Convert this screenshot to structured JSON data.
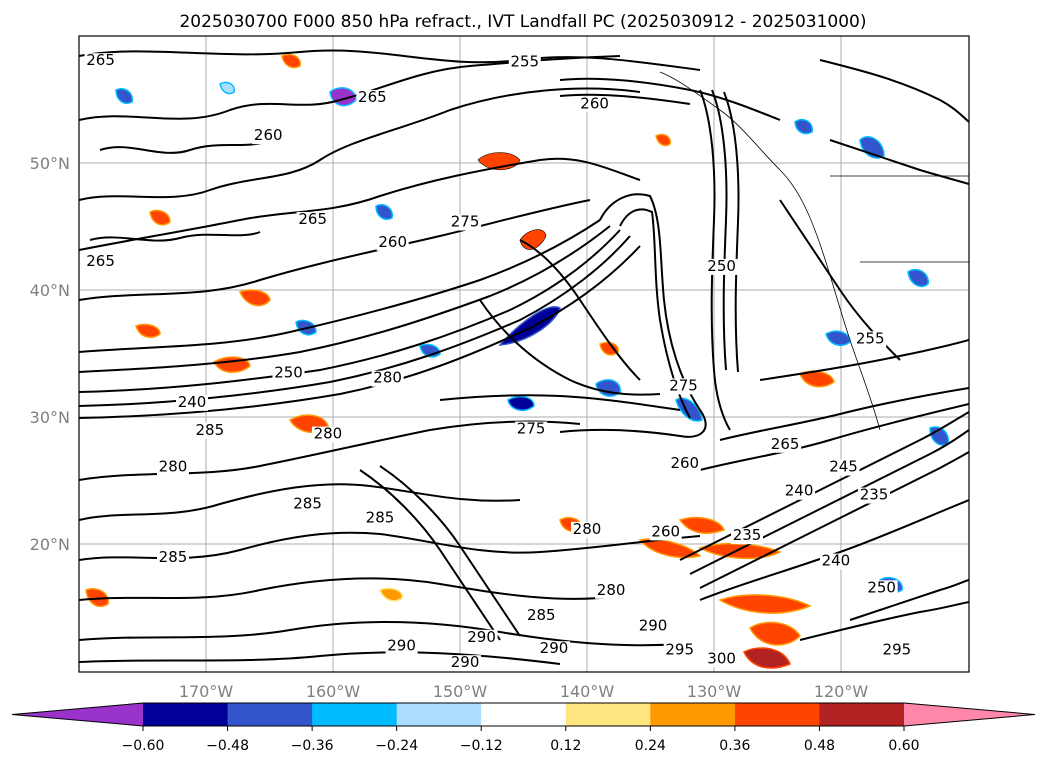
{
  "title": "2025030700 F000 850 hPa refract., IVT Landfall PC (2025030912 - 2025031000)",
  "map": {
    "lon_labels": [
      "170°W",
      "160°W",
      "150°W",
      "140°W",
      "130°W",
      "120°W"
    ],
    "lat_labels": [
      "50°N",
      "40°N",
      "30°N",
      "20°N"
    ],
    "contour_labels": [
      {
        "text": "265",
        "lon": -178.3,
        "lat": 57.7
      },
      {
        "text": "255",
        "lon": -144.9,
        "lat": 57.6
      },
      {
        "text": "265",
        "lon": -156.9,
        "lat": 54.8
      },
      {
        "text": "260",
        "lon": -139.4,
        "lat": 54.3
      },
      {
        "text": "260",
        "lon": -165.1,
        "lat": 51.8
      },
      {
        "text": "265",
        "lon": -161.6,
        "lat": 45.2
      },
      {
        "text": "260",
        "lon": -155.3,
        "lat": 43.4
      },
      {
        "text": "275",
        "lon": -149.6,
        "lat": 45.0
      },
      {
        "text": "265",
        "lon": -178.3,
        "lat": 41.9
      },
      {
        "text": "250",
        "lon": -129.4,
        "lat": 41.5
      },
      {
        "text": "250",
        "lon": -163.5,
        "lat": 33.1
      },
      {
        "text": "240",
        "lon": -171.1,
        "lat": 30.8
      },
      {
        "text": "285",
        "lon": -169.7,
        "lat": 28.6
      },
      {
        "text": "280",
        "lon": -160.4,
        "lat": 28.3
      },
      {
        "text": "280",
        "lon": -155.7,
        "lat": 32.7
      },
      {
        "text": "275",
        "lon": -144.4,
        "lat": 28.7
      },
      {
        "text": "275",
        "lon": -132.4,
        "lat": 32.1
      },
      {
        "text": "255",
        "lon": -117.7,
        "lat": 35.8
      },
      {
        "text": "265",
        "lon": -124.4,
        "lat": 27.5
      },
      {
        "text": "260",
        "lon": -132.3,
        "lat": 26.0
      },
      {
        "text": "245",
        "lon": -119.8,
        "lat": 25.7
      },
      {
        "text": "240",
        "lon": -123.3,
        "lat": 23.8
      },
      {
        "text": "235",
        "lon": -117.4,
        "lat": 23.5
      },
      {
        "text": "280",
        "lon": -172.6,
        "lat": 25.7
      },
      {
        "text": "285",
        "lon": -162.0,
        "lat": 22.8
      },
      {
        "text": "285",
        "lon": -156.3,
        "lat": 21.7
      },
      {
        "text": "280",
        "lon": -140.0,
        "lat": 20.8
      },
      {
        "text": "260",
        "lon": -133.8,
        "lat": 20.6
      },
      {
        "text": "235",
        "lon": -127.4,
        "lat": 20.3
      },
      {
        "text": "280",
        "lon": -138.1,
        "lat": 16.0
      },
      {
        "text": "285",
        "lon": -143.6,
        "lat": 14.0
      },
      {
        "text": "240",
        "lon": -120.4,
        "lat": 18.3
      },
      {
        "text": "250",
        "lon": -116.8,
        "lat": 16.2
      },
      {
        "text": "285",
        "lon": -172.6,
        "lat": 18.6
      },
      {
        "text": "290",
        "lon": -148.3,
        "lat": 12.3
      },
      {
        "text": "290",
        "lon": -142.6,
        "lat": 11.4
      },
      {
        "text": "290",
        "lon": -134.8,
        "lat": 13.2
      },
      {
        "text": "290",
        "lon": -154.6,
        "lat": 11.6
      },
      {
        "text": "295",
        "lon": -132.7,
        "lat": 11.3
      },
      {
        "text": "300",
        "lon": -129.4,
        "lat": 10.6
      },
      {
        "text": "295",
        "lon": -115.6,
        "lat": 11.3
      },
      {
        "text": "290",
        "lon": -149.6,
        "lat": 10.3
      }
    ]
  },
  "colorbar": {
    "tick_labels": [
      "−0.60",
      "−0.48",
      "−0.36",
      "−0.24",
      "−0.12",
      "0.12",
      "0.24",
      "0.36",
      "0.48",
      "0.60"
    ],
    "colors": [
      "#9933cc",
      "#000099",
      "#3355cc",
      "#00bbff",
      "#aaddff",
      "#ffffff",
      "#ffe680",
      "#ff9900",
      "#ff4400",
      "#b22222",
      "#ff88aa"
    ]
  }
}
